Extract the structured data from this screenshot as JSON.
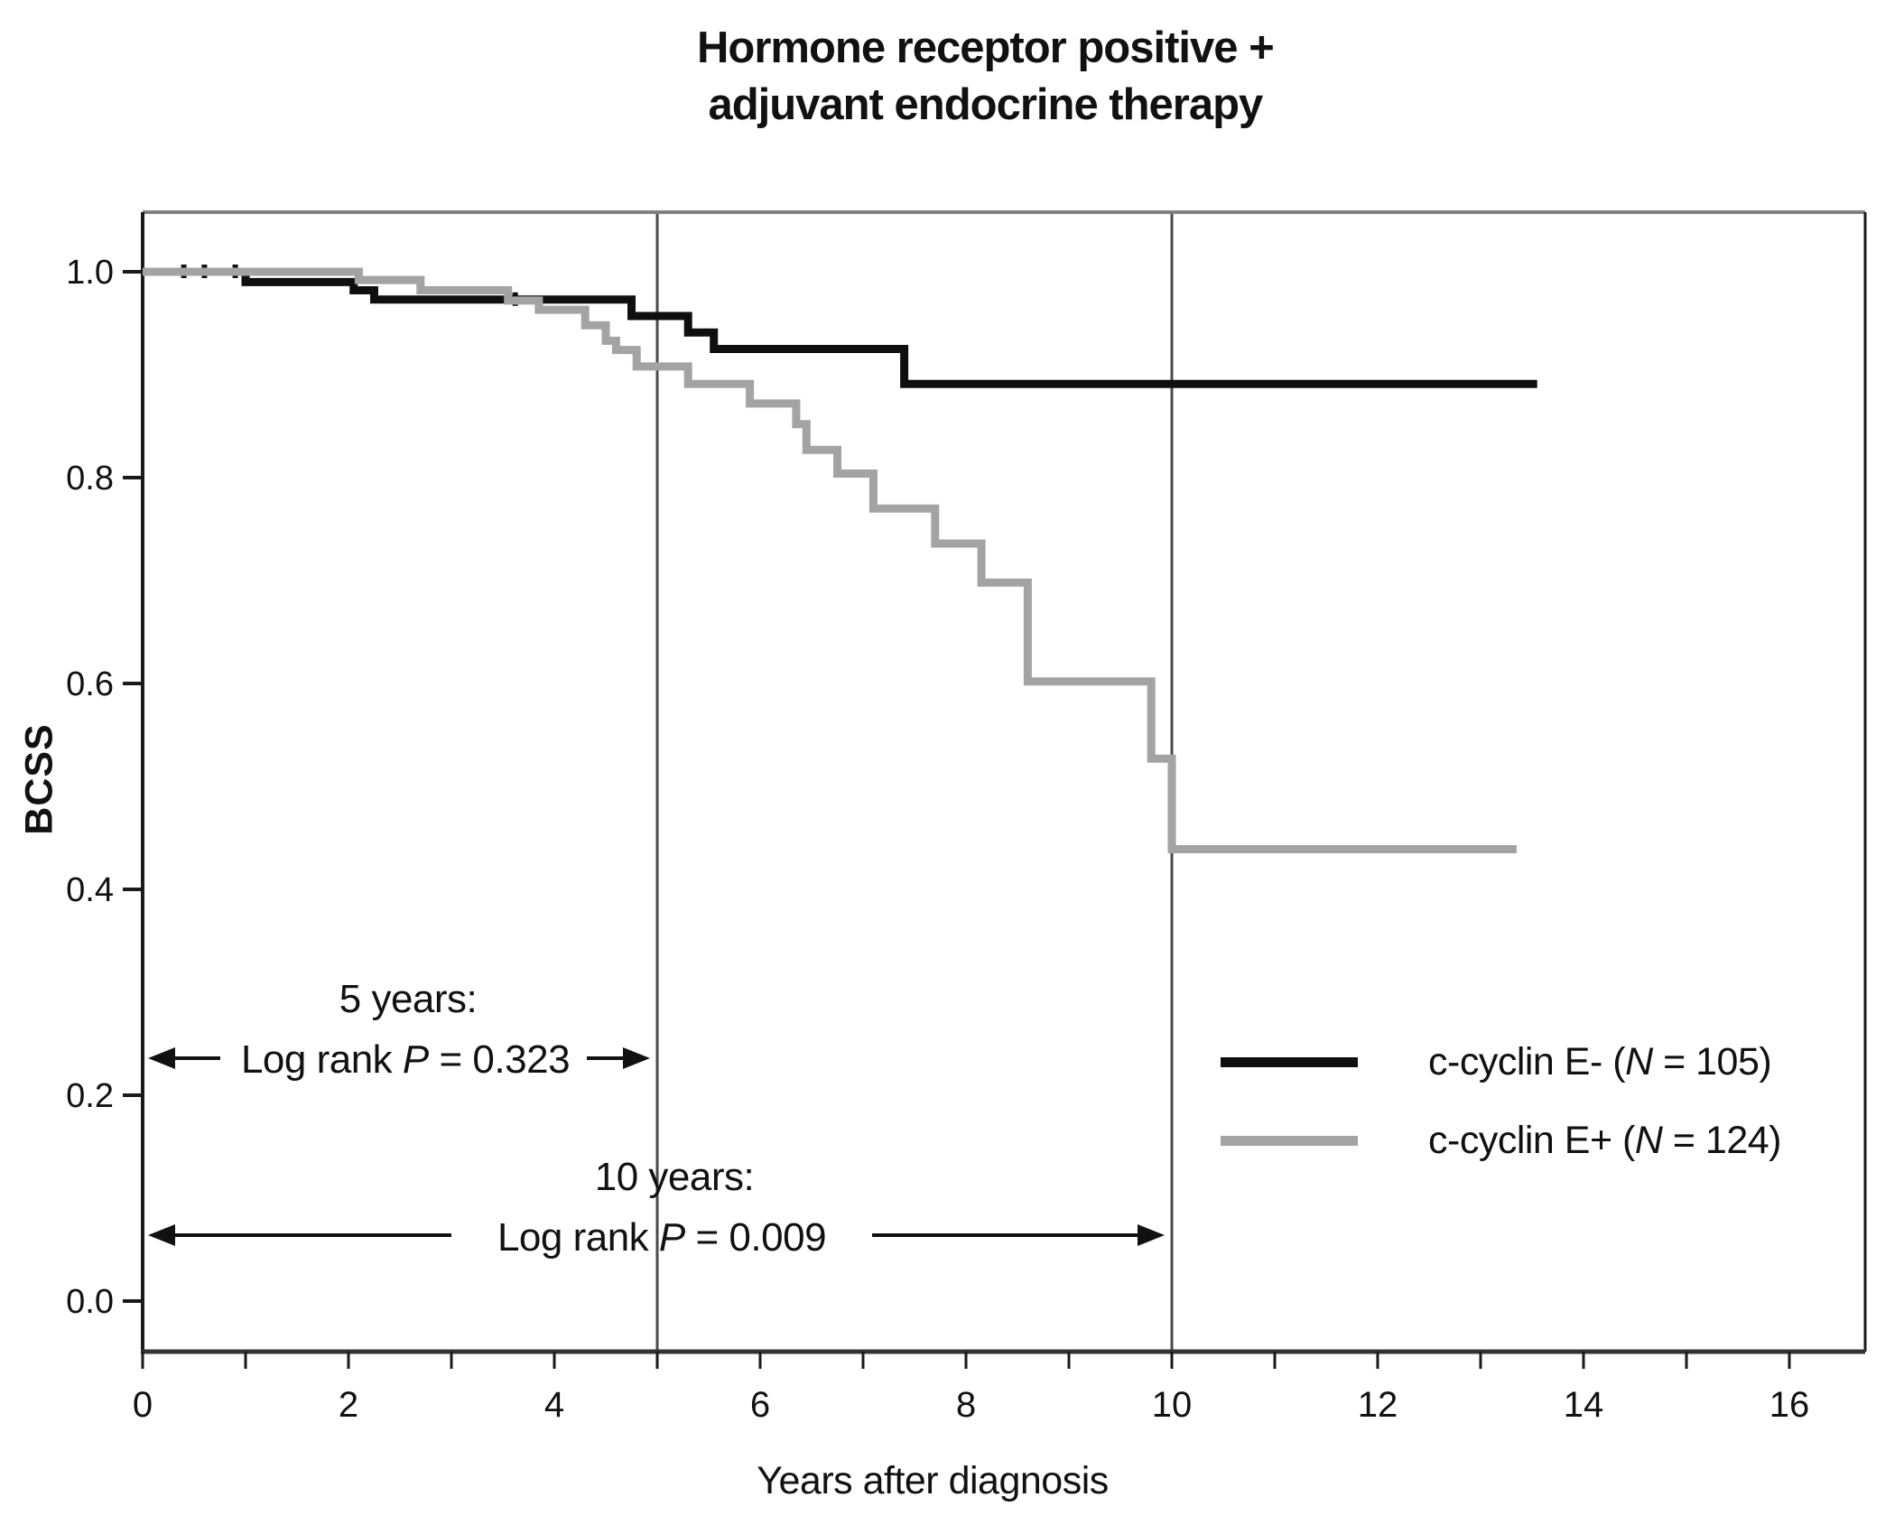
{
  "title": {
    "line1": "Hormone receptor positive +",
    "line2": "adjuvant endocrine therapy"
  },
  "y_axis": {
    "label": "BCSS",
    "tick_labels": [
      "1.0",
      "0.8",
      "0.6",
      "0.4",
      "0.2",
      "0.0"
    ],
    "tick_values": [
      1.0,
      0.8,
      0.6,
      0.4,
      0.2,
      0.0
    ]
  },
  "x_axis": {
    "label": "Years after diagnosis",
    "tick_values": [
      0,
      1,
      2,
      3,
      4,
      5,
      6,
      7,
      8,
      9,
      10,
      11,
      12,
      13,
      14,
      15,
      16
    ],
    "labeled_tick_values": [
      0,
      2,
      4,
      6,
      8,
      10,
      12,
      14,
      16
    ],
    "labeled_tick_labels": [
      "0",
      "2",
      "4",
      "6",
      "8",
      "10",
      "12",
      "14",
      "16"
    ]
  },
  "legend": {
    "items": [
      {
        "pre": "c-cyclin E-  (",
        "n": "N",
        "post": " = 105)",
        "color": "#0f0f0f"
      },
      {
        "pre": "c-cyclin E+ (",
        "n": "N",
        "post": " = 124)",
        "color": "#a3a3a3"
      }
    ]
  },
  "annotations": [
    {
      "line1": "5 years:",
      "pre": "Log rank ",
      "p": "P",
      "post": " = 0.323",
      "arrow_from_year": 0,
      "arrow_to_year": 5
    },
    {
      "line1": "10 years:",
      "pre": "Log rank ",
      "p": "P",
      "post": " = 0.009",
      "arrow_from_year": 0,
      "arrow_to_year": 10
    }
  ],
  "chart_data": {
    "type": "line",
    "subtype": "kaplan-meier-step",
    "title": "Hormone receptor positive + adjuvant endocrine therapy",
    "xlabel": "Years after diagnosis",
    "ylabel": "BCSS",
    "xlim": [
      0,
      16.74
    ],
    "ylim": [
      -0.05,
      1.06
    ],
    "xticks": [
      0,
      1,
      2,
      3,
      4,
      5,
      6,
      7,
      8,
      9,
      10,
      11,
      12,
      13,
      14,
      15,
      16
    ],
    "yticks": [
      0.0,
      0.2,
      0.4,
      0.6,
      0.8,
      1.0
    ],
    "grid": false,
    "legend_position": "right-middle",
    "reference_lines_x": [
      5,
      10
    ],
    "log_rank_p_5yr": 0.323,
    "log_rank_p_10yr": 0.009,
    "series": [
      {
        "name": "c-cyclin E- (N = 105)",
        "n": 105,
        "color": "#0f0f0f",
        "points": [
          [
            0,
            1.0
          ],
          [
            1.0,
            0.99
          ],
          [
            2.05,
            0.982
          ],
          [
            2.25,
            0.973
          ],
          [
            4.75,
            0.957
          ],
          [
            5.3,
            0.941
          ],
          [
            5.55,
            0.925
          ],
          [
            7.4,
            0.891
          ]
        ],
        "end_x": 13.55,
        "censor_marks": [
          [
            0.4,
            1.0
          ],
          [
            0.6,
            1.0
          ],
          [
            0.9,
            1.0
          ],
          [
            3.62,
            0.973
          ]
        ]
      },
      {
        "name": "c-cyclin E+ (N = 124)",
        "n": 124,
        "color": "#a3a3a3",
        "points": [
          [
            0,
            1.0
          ],
          [
            2.1,
            0.992
          ],
          [
            2.7,
            0.982
          ],
          [
            3.55,
            0.972
          ],
          [
            3.85,
            0.963
          ],
          [
            4.3,
            0.948
          ],
          [
            4.5,
            0.933
          ],
          [
            4.6,
            0.924
          ],
          [
            4.8,
            0.908
          ],
          [
            5.3,
            0.891
          ],
          [
            5.9,
            0.872
          ],
          [
            6.35,
            0.852
          ],
          [
            6.45,
            0.827
          ],
          [
            6.75,
            0.804
          ],
          [
            7.1,
            0.77
          ],
          [
            7.7,
            0.736
          ],
          [
            8.15,
            0.698
          ],
          [
            8.6,
            0.602
          ],
          [
            9.8,
            0.527
          ],
          [
            10.0,
            0.439
          ]
        ],
        "end_x": 13.35,
        "censor_marks": []
      }
    ]
  }
}
